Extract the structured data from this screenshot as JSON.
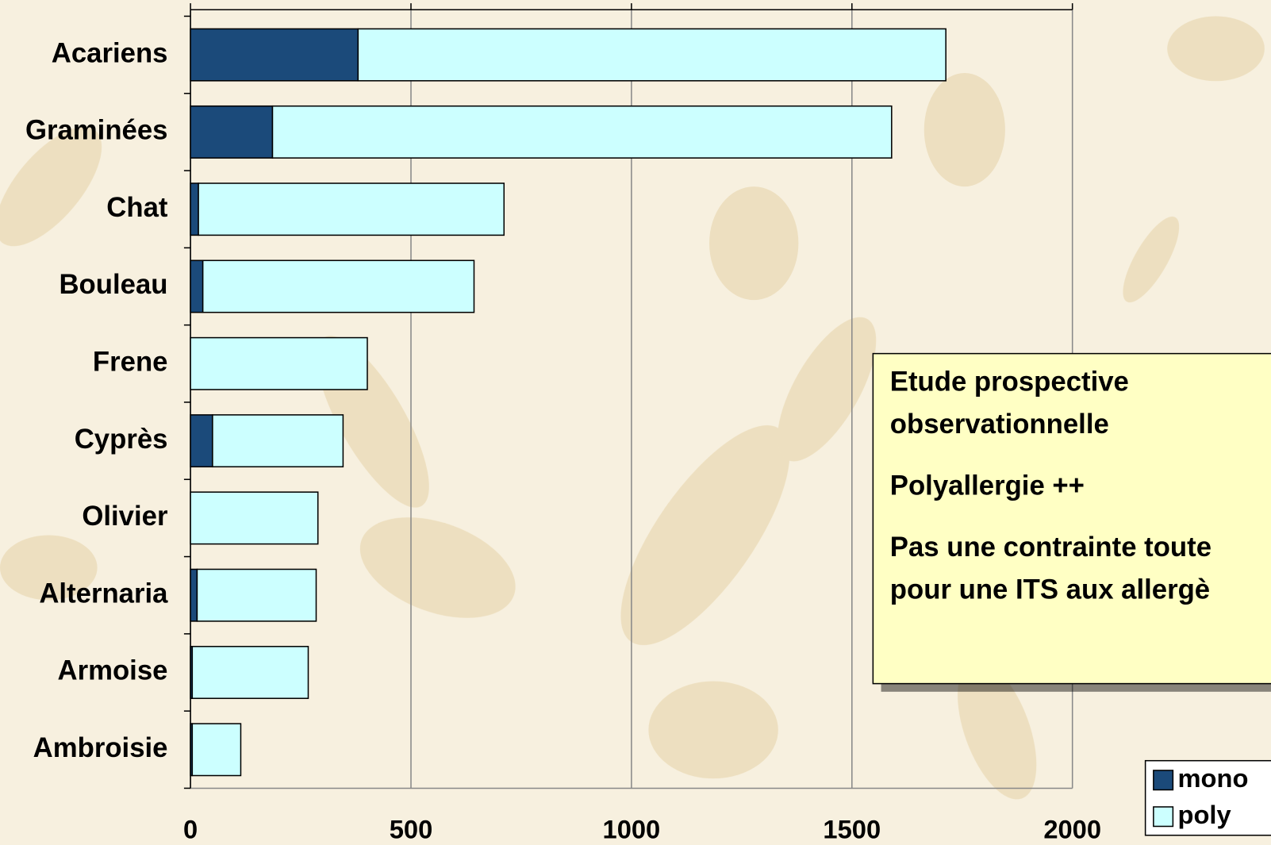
{
  "chart_data": {
    "type": "bar",
    "orientation": "horizontal",
    "stacked": true,
    "categories": [
      "Acariens",
      "Graminées",
      "Chat",
      "Bouleau",
      "Frene",
      "Cyprès",
      "Olivier",
      "Alternaria",
      "Armoise",
      "Ambroisie"
    ],
    "series": [
      {
        "name": "mono",
        "color": "#1b4a7a",
        "values": [
          380,
          186,
          18,
          28,
          0,
          50,
          0,
          15,
          4,
          4
        ]
      },
      {
        "name": "poly",
        "color": "#ccffff",
        "values": [
          1333,
          1404,
          693,
          615,
          401,
          296,
          289,
          270,
          263,
          110
        ]
      }
    ],
    "xlim": [
      0,
      2000
    ],
    "xticks": [
      0,
      500,
      1000,
      1500,
      2000
    ],
    "grid": true,
    "legend": "lower right",
    "annotation": {
      "paragraphs": [
        [
          "Etude prospective",
          "observationnelle"
        ],
        [
          "Polyallergie ++"
        ],
        [
          "Pas une contrainte toute",
          "pour une ITS aux allergè"
        ]
      ]
    }
  }
}
